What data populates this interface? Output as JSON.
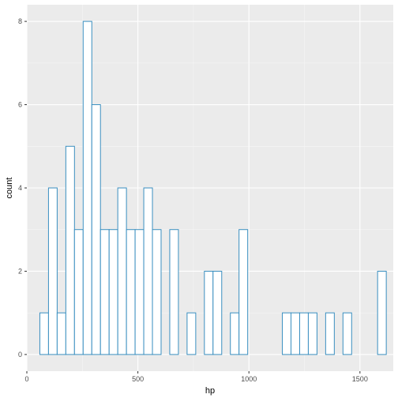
{
  "chart_data": {
    "type": "bar",
    "subtype": "histogram",
    "xlabel": "hp",
    "ylabel": "count",
    "xlim": [
      0,
      1650
    ],
    "ylim": [
      -0.4,
      8.4
    ],
    "x_ticks": [
      0,
      500,
      1000,
      1500
    ],
    "y_ticks": [
      0,
      2,
      4,
      6,
      8
    ],
    "x_tick_labels": [
      "0",
      "500",
      "1000",
      "1500"
    ],
    "y_tick_labels": [
      "0",
      "2",
      "4",
      "6",
      "8"
    ],
    "bin_start": 58.5,
    "bin_width": 39,
    "counts": [
      1,
      4,
      1,
      5,
      3,
      8,
      6,
      3,
      3,
      4,
      3,
      3,
      4,
      3,
      0,
      3,
      0,
      1,
      0,
      2,
      2,
      0,
      1,
      3,
      0,
      0,
      0,
      0,
      1,
      1,
      1,
      1,
      0,
      1,
      0,
      1,
      0,
      0,
      0,
      2
    ],
    "grid": true,
    "panel_background": "#ebebeb",
    "bar_fill": "#ffffff",
    "bar_outline": "#3a8fc0"
  }
}
